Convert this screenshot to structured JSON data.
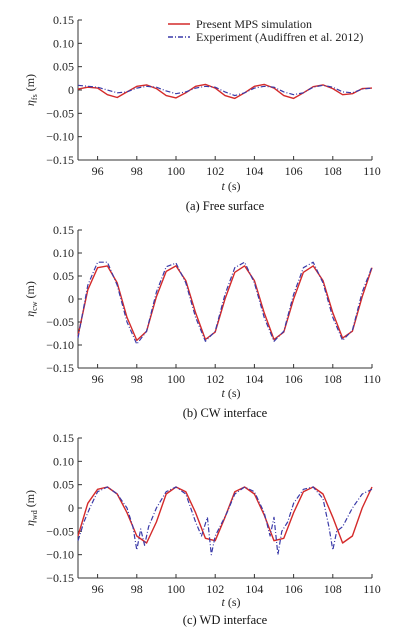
{
  "chart_data": [
    {
      "type": "line",
      "caption": "(a) Free surface",
      "xlabel": "t (s)",
      "ylabel": "η_fs (m)",
      "ylabel_main": "η",
      "ylabel_sub": "fs",
      "ylabel_unit": "(m)",
      "xlim": [
        95,
        110
      ],
      "ylim": [
        -0.15,
        0.15
      ],
      "xticks": [
        96,
        98,
        100,
        102,
        104,
        106,
        108,
        110
      ],
      "yticks": [
        0.15,
        0.1,
        0.05,
        0,
        -0.05,
        -0.1,
        -0.15
      ],
      "ytick_labels": [
        "0.15",
        "0.10",
        "0.05",
        "0",
        "−0.05",
        "−0.10",
        "−0.15"
      ],
      "legend": {
        "position": "top-right",
        "entries": [
          {
            "label": "Present MPS simulation",
            "color": "#d42a2a",
            "style": "solid"
          },
          {
            "label": "Experiment (Audiffren et al. 2012)",
            "color": "#3a3aa8",
            "style": "dash-dot"
          }
        ]
      },
      "series": [
        {
          "name": "Present MPS simulation",
          "color": "#d42a2a",
          "style": "solid",
          "x": [
            95,
            95.5,
            96,
            96.5,
            97,
            97.5,
            98,
            98.5,
            99,
            99.5,
            100,
            100.5,
            101,
            101.5,
            102,
            102.5,
            103,
            103.5,
            104,
            104.5,
            105,
            105.5,
            106,
            106.5,
            107,
            107.5,
            108,
            108.5,
            109,
            109.5,
            110
          ],
          "values": [
            0.002,
            0.006,
            0.004,
            -0.01,
            -0.016,
            -0.004,
            0.008,
            0.011,
            0.003,
            -0.012,
            -0.017,
            -0.006,
            0.008,
            0.012,
            0.004,
            -0.012,
            -0.018,
            -0.006,
            0.008,
            0.012,
            0.004,
            -0.012,
            -0.018,
            -0.006,
            0.007,
            0.011,
            0.003,
            -0.01,
            -0.008,
            0.003,
            0.004
          ]
        },
        {
          "name": "Experiment (Audiffren et al. 2012)",
          "color": "#3a3aa8",
          "style": "dash-dot",
          "x": [
            95,
            95.5,
            96,
            96.5,
            97,
            97.5,
            98,
            98.5,
            99,
            99.5,
            100,
            100.5,
            101,
            101.5,
            102,
            102.5,
            103,
            103.5,
            104,
            104.5,
            105,
            105.5,
            106,
            106.5,
            107,
            107.5,
            108,
            108.5,
            109,
            109.5,
            110
          ],
          "values": [
            0.01,
            0.008,
            0.006,
            0.0,
            -0.006,
            -0.004,
            0.004,
            0.008,
            0.006,
            -0.002,
            -0.008,
            -0.004,
            0.004,
            0.008,
            0.006,
            -0.004,
            -0.012,
            -0.006,
            0.004,
            0.008,
            0.006,
            -0.004,
            -0.01,
            -0.006,
            0.006,
            0.01,
            0.006,
            -0.004,
            -0.006,
            0.002,
            0.004
          ]
        }
      ]
    },
    {
      "type": "line",
      "caption": "(b) CW interface",
      "xlabel": "t (s)",
      "ylabel": "η_cw (m)",
      "ylabel_main": "η",
      "ylabel_sub": "cw",
      "ylabel_unit": "(m)",
      "xlim": [
        95,
        110
      ],
      "ylim": [
        -0.15,
        0.15
      ],
      "xticks": [
        96,
        98,
        100,
        102,
        104,
        106,
        108,
        110
      ],
      "yticks": [
        0.15,
        0.1,
        0.05,
        0,
        -0.05,
        -0.1,
        -0.15
      ],
      "ytick_labels": [
        "0.15",
        "0.10",
        "0.05",
        "0",
        "−0.05",
        "−0.10",
        "−0.15"
      ],
      "series": [
        {
          "name": "Present MPS simulation",
          "color": "#d42a2a",
          "style": "solid",
          "x": [
            95,
            95.5,
            96,
            96.5,
            97,
            97.5,
            98,
            98.5,
            99,
            99.5,
            100,
            100.5,
            101,
            101.5,
            102,
            102.5,
            103,
            103.5,
            104,
            104.5,
            105,
            105.5,
            106,
            106.5,
            107,
            107.5,
            108,
            108.5,
            109,
            109.5,
            110
          ],
          "values": [
            -0.08,
            0.02,
            0.068,
            0.072,
            0.035,
            -0.04,
            -0.09,
            -0.07,
            0.005,
            0.06,
            0.072,
            0.04,
            -0.03,
            -0.088,
            -0.072,
            0.0,
            0.058,
            0.072,
            0.04,
            -0.03,
            -0.088,
            -0.072,
            0.0,
            0.058,
            0.072,
            0.04,
            -0.03,
            -0.085,
            -0.07,
            0.005,
            0.068
          ]
        },
        {
          "name": "Experiment (Audiffren et al. 2012)",
          "color": "#3a3aa8",
          "style": "dash-dot",
          "x": [
            95,
            95.5,
            96,
            96.5,
            97,
            97.5,
            98,
            98.5,
            99,
            99.5,
            100,
            100.5,
            101,
            101.5,
            102,
            102.5,
            103,
            103.5,
            104,
            104.5,
            105,
            105.5,
            106,
            106.5,
            107,
            107.5,
            108,
            108.5,
            109,
            109.5,
            110
          ],
          "values": [
            -0.085,
            0.03,
            0.08,
            0.08,
            0.03,
            -0.05,
            -0.098,
            -0.07,
            0.015,
            0.07,
            0.078,
            0.035,
            -0.04,
            -0.092,
            -0.07,
            0.01,
            0.068,
            0.08,
            0.035,
            -0.04,
            -0.092,
            -0.07,
            0.01,
            0.068,
            0.08,
            0.035,
            -0.04,
            -0.09,
            -0.068,
            0.015,
            0.07
          ]
        }
      ]
    },
    {
      "type": "line",
      "caption": "(c) WD interface",
      "xlabel": "t (s)",
      "ylabel": "η_wd (m)",
      "ylabel_main": "η",
      "ylabel_sub": "wd",
      "ylabel_unit": "(m)",
      "xlim": [
        95,
        110
      ],
      "ylim": [
        -0.15,
        0.15
      ],
      "xticks": [
        96,
        98,
        100,
        102,
        104,
        106,
        108,
        110
      ],
      "yticks": [
        0.15,
        0.1,
        0.05,
        0,
        -0.05,
        -0.1,
        -0.15
      ],
      "ytick_labels": [
        "0.15",
        "0.10",
        "0.05",
        "0",
        "−0.05",
        "−0.10",
        "−0.15"
      ],
      "series": [
        {
          "name": "Present MPS simulation",
          "color": "#d42a2a",
          "style": "solid",
          "x": [
            95,
            95.5,
            96,
            96.5,
            97,
            97.5,
            98,
            98.5,
            99,
            99.5,
            100,
            100.5,
            101,
            101.5,
            102,
            102.5,
            103,
            103.5,
            104,
            104.5,
            105,
            105.5,
            106,
            106.5,
            107,
            107.5,
            108,
            108.5,
            109,
            109.5,
            110
          ],
          "values": [
            -0.06,
            0.01,
            0.04,
            0.045,
            0.03,
            -0.01,
            -0.06,
            -0.075,
            -0.03,
            0.03,
            0.045,
            0.035,
            -0.01,
            -0.065,
            -0.07,
            -0.02,
            0.035,
            0.045,
            0.03,
            -0.015,
            -0.07,
            -0.065,
            -0.01,
            0.035,
            0.045,
            0.03,
            -0.02,
            -0.075,
            -0.06,
            0.0,
            0.045
          ]
        },
        {
          "name": "Experiment (Audiffren et al. 2012)",
          "color": "#3a3aa8",
          "style": "dash-dot",
          "x": [
            95,
            95.3,
            95.6,
            96,
            96.5,
            97,
            97.5,
            97.8,
            98,
            98.2,
            98.4,
            98.6,
            99,
            99.5,
            100,
            100.5,
            101,
            101.3,
            101.6,
            101.8,
            102,
            102.3,
            102.6,
            103,
            103.5,
            104,
            104.5,
            104.8,
            105,
            105.2,
            105.4,
            105.7,
            106,
            106.5,
            107,
            107.5,
            107.8,
            108,
            108.2,
            108.5,
            109,
            109.5,
            110
          ],
          "values": [
            -0.07,
            -0.03,
            0.0,
            0.035,
            0.045,
            0.03,
            0.0,
            -0.04,
            -0.09,
            -0.045,
            -0.08,
            -0.04,
            0.0,
            0.035,
            0.045,
            0.03,
            -0.03,
            -0.06,
            -0.02,
            -0.1,
            -0.06,
            -0.035,
            -0.01,
            0.03,
            0.045,
            0.035,
            -0.01,
            -0.06,
            -0.02,
            -0.1,
            -0.05,
            -0.03,
            0.01,
            0.04,
            0.045,
            0.02,
            -0.04,
            -0.09,
            -0.05,
            -0.04,
            0.0,
            0.03,
            0.04
          ]
        }
      ]
    }
  ]
}
